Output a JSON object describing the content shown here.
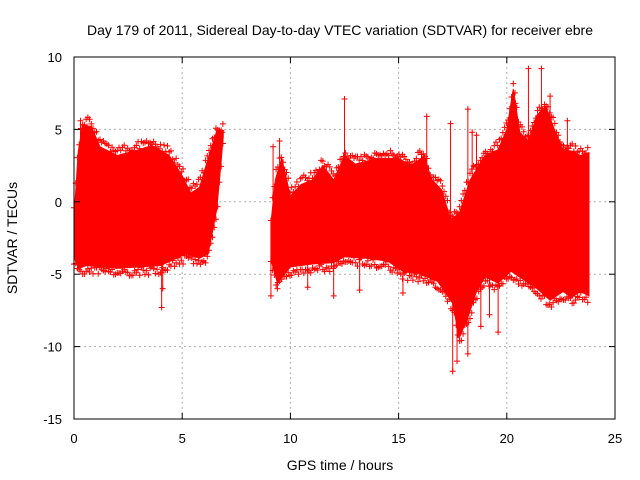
{
  "chart_data": {
    "type": "scatter",
    "title": "Day 179 of 2011, Sidereal Day-to-day VTEC variation (SDTVAR) for receiver ebre",
    "xlabel": "GPS time / hours",
    "ylabel": "SDTVAR / TECUs",
    "xlim": [
      0,
      25
    ],
    "ylim": [
      -15,
      10
    ],
    "xticks": [
      0,
      5,
      10,
      15,
      20,
      25
    ],
    "xtick_labels": [
      "0",
      "5",
      "10",
      "15",
      "20",
      "25"
    ],
    "yticks": [
      -15,
      -10,
      -5,
      0,
      5,
      10
    ],
    "ytick_labels": [
      "-15",
      "-10",
      "-5",
      "0",
      "5",
      "10"
    ],
    "grid": true,
    "marker": "plus",
    "series_color": "#ff0000",
    "series": [
      {
        "name": "SDTVAR",
        "segments": [
          {
            "x_range": [
              0.0,
              6.9
            ],
            "upper": [
              [
                0.0,
                -1.0
              ],
              [
                0.2,
                3.5
              ],
              [
                0.4,
                5.3
              ],
              [
                0.8,
                5.2
              ],
              [
                1.2,
                3.8
              ],
              [
                2.0,
                3.2
              ],
              [
                3.0,
                3.6
              ],
              [
                3.6,
                3.9
              ],
              [
                4.4,
                3.2
              ],
              [
                5.0,
                1.8
              ],
              [
                5.4,
                0.6
              ],
              [
                5.8,
                1.0
              ],
              [
                6.2,
                3.0
              ],
              [
                6.6,
                4.9
              ],
              [
                6.9,
                4.9
              ]
            ],
            "lower": [
              [
                0.0,
                -3.8
              ],
              [
                0.2,
                -4.6
              ],
              [
                0.6,
                -4.4
              ],
              [
                1.2,
                -4.5
              ],
              [
                2.0,
                -4.6
              ],
              [
                3.0,
                -4.5
              ],
              [
                4.0,
                -4.4
              ],
              [
                4.6,
                -4.0
              ],
              [
                5.2,
                -3.6
              ],
              [
                5.8,
                -3.9
              ],
              [
                6.2,
                -3.6
              ],
              [
                6.6,
                -0.5
              ],
              [
                6.9,
                4.5
              ]
            ]
          },
          {
            "x_range": [
              9.1,
              23.8
            ],
            "upper": [
              [
                9.1,
                -1.5
              ],
              [
                9.3,
                1.5
              ],
              [
                9.6,
                3.0
              ],
              [
                10.0,
                0.4
              ],
              [
                10.5,
                1.2
              ],
              [
                11.0,
                1.5
              ],
              [
                11.5,
                2.5
              ],
              [
                12.0,
                1.5
              ],
              [
                12.5,
                3.2
              ],
              [
                13.0,
                2.6
              ],
              [
                14.0,
                3.0
              ],
              [
                15.0,
                3.0
              ],
              [
                15.6,
                2.5
              ],
              [
                16.2,
                3.2
              ],
              [
                16.5,
                1.6
              ],
              [
                17.0,
                0.8
              ],
              [
                17.4,
                -1.2
              ],
              [
                17.8,
                -0.8
              ],
              [
                18.3,
                1.5
              ],
              [
                19.0,
                3.2
              ],
              [
                19.6,
                3.6
              ],
              [
                20.0,
                5.0
              ],
              [
                20.3,
                7.8
              ],
              [
                20.6,
                4.8
              ],
              [
                21.0,
                4.2
              ],
              [
                21.4,
                6.0
              ],
              [
                21.8,
                6.6
              ],
              [
                22.2,
                5.0
              ],
              [
                22.6,
                3.6
              ],
              [
                23.0,
                3.5
              ],
              [
                23.4,
                3.2
              ],
              [
                23.8,
                3.4
              ]
            ],
            "lower": [
              [
                9.1,
                -4.0
              ],
              [
                9.4,
                -5.6
              ],
              [
                10.0,
                -4.5
              ],
              [
                11.0,
                -4.3
              ],
              [
                12.0,
                -4.2
              ],
              [
                12.5,
                -3.8
              ],
              [
                13.5,
                -3.9
              ],
              [
                14.5,
                -4.1
              ],
              [
                15.2,
                -4.8
              ],
              [
                16.0,
                -5.0
              ],
              [
                16.8,
                -5.5
              ],
              [
                17.5,
                -7.0
              ],
              [
                17.8,
                -9.4
              ],
              [
                18.2,
                -8.0
              ],
              [
                18.6,
                -6.2
              ],
              [
                19.0,
                -5.2
              ],
              [
                19.6,
                -5.6
              ],
              [
                20.2,
                -4.8
              ],
              [
                20.8,
                -5.4
              ],
              [
                21.4,
                -6.0
              ],
              [
                22.0,
                -6.8
              ],
              [
                22.6,
                -6.2
              ],
              [
                23.0,
                -6.6
              ],
              [
                23.4,
                -6.2
              ],
              [
                23.8,
                -6.5
              ]
            ]
          }
        ],
        "outliers": [
          [
            4.05,
            -7.3
          ],
          [
            4.1,
            -6.0
          ],
          [
            9.1,
            -6.5
          ],
          [
            9.4,
            -6.0
          ],
          [
            10.8,
            -5.9
          ],
          [
            12.0,
            -6.5
          ],
          [
            12.5,
            7.1
          ],
          [
            13.2,
            -6.1
          ],
          [
            15.2,
            -6.3
          ],
          [
            16.3,
            5.9
          ],
          [
            17.5,
            -11.7
          ],
          [
            17.7,
            -11.0
          ],
          [
            18.2,
            -10.5
          ],
          [
            18.2,
            6.4
          ],
          [
            18.6,
            4.6
          ],
          [
            18.8,
            -8.6
          ],
          [
            19.2,
            -7.8
          ],
          [
            21.0,
            9.2
          ],
          [
            21.6,
            9.2
          ],
          [
            22.0,
            7.3
          ],
          [
            22.8,
            5.6
          ],
          [
            9.2,
            3.8
          ],
          [
            18.0,
            -6.5
          ],
          [
            19.6,
            -9.0
          ],
          [
            20.4,
            6.8
          ],
          [
            21.6,
            6.0
          ],
          [
            17.4,
            5.4
          ],
          [
            18.4,
            4.8
          ],
          [
            0.3,
            5.6
          ],
          [
            0.6,
            5.2
          ],
          [
            6.85,
            4.8
          ],
          [
            9.5,
            4.2
          ]
        ]
      }
    ]
  }
}
